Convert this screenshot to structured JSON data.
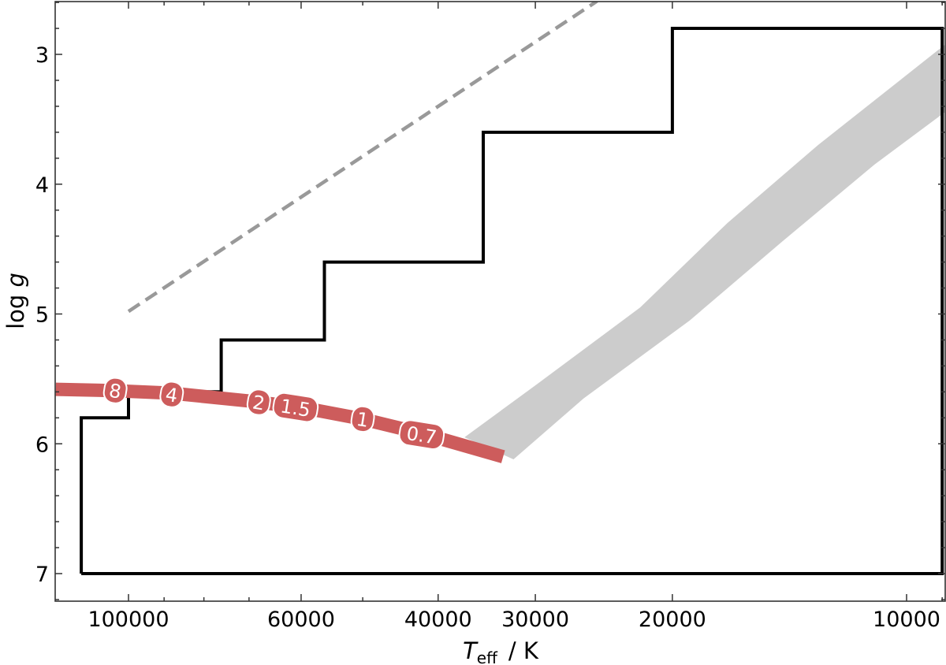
{
  "chart_data": {
    "type": "line",
    "title": "",
    "xlabel": "T_eff / K",
    "xlabel_parts": {
      "symbol": "T",
      "subscript": "eff",
      "unit": "/  K"
    },
    "ylabel": "log g",
    "ylabel_parts": {
      "prefix": "log ",
      "symbol": "g"
    },
    "x_scale": "log",
    "x_inverted": true,
    "y_inverted": true,
    "xlim": [
      124000,
      8950
    ],
    "ylim": [
      7.21,
      2.59
    ],
    "x_ticks": [
      100000,
      60000,
      40000,
      30000,
      20000,
      10000
    ],
    "x_tick_labels": [
      "100000",
      "60000",
      "40000",
      "30000",
      "20000",
      "10000"
    ],
    "x_minor_ticks": [
      90000,
      80000,
      70000,
      50000,
      9000
    ],
    "y_ticks": [
      3,
      4,
      5,
      6,
      7
    ],
    "y_tick_labels": [
      "3",
      "4",
      "5",
      "6",
      "7"
    ],
    "y_minor_step": 0.2,
    "grid": false,
    "legend": null,
    "series": [
      {
        "name": "grid-coverage-outline",
        "style": "step",
        "color": "#000000",
        "points": [
          {
            "teff": 115000,
            "logg": 7.0
          },
          {
            "teff": 115000,
            "logg": 5.8
          },
          {
            "teff": 100000,
            "logg": 5.8
          },
          {
            "teff": 100000,
            "logg": 5.6
          },
          {
            "teff": 76000,
            "logg": 5.6
          },
          {
            "teff": 76000,
            "logg": 5.2
          },
          {
            "teff": 56000,
            "logg": 5.2
          },
          {
            "teff": 56000,
            "logg": 4.6
          },
          {
            "teff": 35000,
            "logg": 4.6
          },
          {
            "teff": 35000,
            "logg": 3.6
          },
          {
            "teff": 20000,
            "logg": 3.6
          },
          {
            "teff": 20000,
            "logg": 2.8
          },
          {
            "teff": 9000,
            "logg": 2.8
          },
          {
            "teff": 9000,
            "logg": 7.0
          },
          {
            "teff": 115000,
            "logg": 7.0
          }
        ]
      },
      {
        "name": "dashed-limit",
        "style": "dashed",
        "color": "#999999",
        "points": [
          {
            "teff": 100000,
            "logg": 4.98
          },
          {
            "teff": 25000,
            "logg": 2.59
          }
        ]
      },
      {
        "name": "gray-band-sequence",
        "style": "band",
        "color": "#cccccc",
        "upper_edge": [
          {
            "teff": 37000,
            "logg": 5.95
          },
          {
            "teff": 30000,
            "logg": 5.55
          },
          {
            "teff": 22000,
            "logg": 4.95
          },
          {
            "teff": 17000,
            "logg": 4.3
          },
          {
            "teff": 13000,
            "logg": 3.7
          },
          {
            "teff": 8950,
            "logg": 2.93
          }
        ],
        "lower_edge": [
          {
            "teff": 32000,
            "logg": 6.12
          },
          {
            "teff": 26000,
            "logg": 5.65
          },
          {
            "teff": 19000,
            "logg": 5.05
          },
          {
            "teff": 14500,
            "logg": 4.45
          },
          {
            "teff": 11000,
            "logg": 3.85
          },
          {
            "teff": 8950,
            "logg": 3.45
          }
        ]
      },
      {
        "name": "red-evolution-track",
        "style": "thick-line",
        "color": "#cd5c5c",
        "points": [
          {
            "teff": 124000,
            "logg": 5.58
          },
          {
            "teff": 105000,
            "logg": 5.59
          },
          {
            "teff": 88000,
            "logg": 5.61
          },
          {
            "teff": 70000,
            "logg": 5.67
          },
          {
            "teff": 60000,
            "logg": 5.72
          },
          {
            "teff": 50000,
            "logg": 5.81
          },
          {
            "teff": 42000,
            "logg": 5.92
          },
          {
            "teff": 33000,
            "logg": 6.1
          }
        ],
        "labels": [
          {
            "text": "8",
            "teff": 104000,
            "logg": 5.59
          },
          {
            "text": "4",
            "teff": 88000,
            "logg": 5.62
          },
          {
            "text": "2",
            "teff": 68000,
            "logg": 5.68
          },
          {
            "text": "1.5",
            "teff": 61000,
            "logg": 5.72
          },
          {
            "text": "1",
            "teff": 50000,
            "logg": 5.81
          },
          {
            "text": "0.7",
            "teff": 42000,
            "logg": 5.93
          }
        ]
      }
    ]
  }
}
